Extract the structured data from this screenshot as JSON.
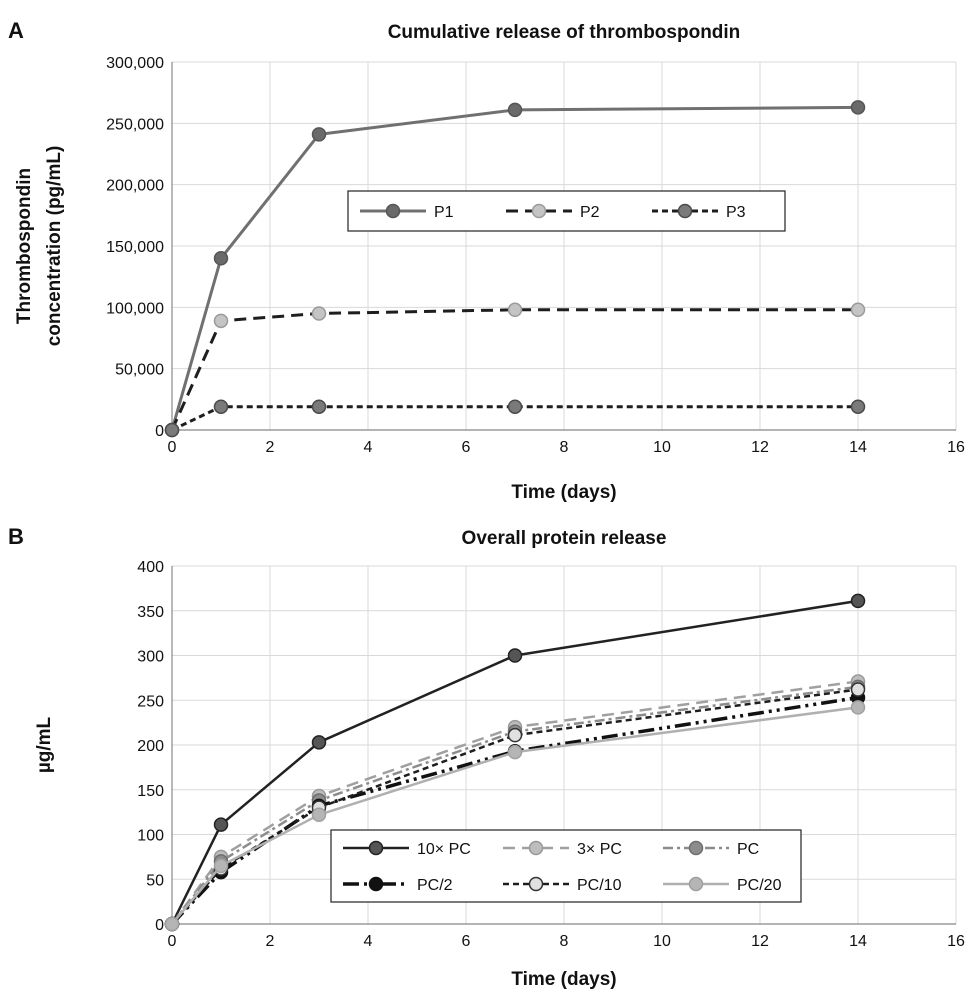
{
  "chart_data": [
    {
      "panel_label": "A",
      "type": "line",
      "title": "Cumulative release of thrombospondin",
      "xlabel": "Time (days)",
      "ylabel": "Thrombospondin concentration (pg/mL)",
      "ylabel_lines": [
        "Thrombospondin",
        "concentration (pg/mL)"
      ],
      "xlim": [
        0,
        16
      ],
      "ylim": [
        0,
        300000
      ],
      "x_ticks": [
        0,
        2,
        4,
        6,
        8,
        10,
        12,
        14,
        16
      ],
      "y_ticks": [
        0,
        50000,
        100000,
        150000,
        200000,
        250000,
        300000
      ],
      "y_tick_labels": [
        "0",
        "50,000",
        "100,000",
        "150,000",
        "200,000",
        "250,000",
        "300,000"
      ],
      "grid": true,
      "legend": "center",
      "x": [
        0,
        1,
        3,
        7,
        14
      ],
      "series": [
        {
          "name": "P1",
          "values": [
            0,
            140000,
            241000,
            261000,
            263000
          ],
          "color": "#707070",
          "dash": "",
          "marker_fill": "#6a6a6a",
          "marker_stroke": "#555555",
          "width": 3
        },
        {
          "name": "P2",
          "values": [
            0,
            89000,
            95000,
            98000,
            98000
          ],
          "color": "#1e1e1e",
          "dash": "12 7",
          "marker_fill": "#c4c4c4",
          "marker_stroke": "#9a9a9a",
          "width": 3
        },
        {
          "name": "P3",
          "values": [
            0,
            19000,
            19000,
            19000,
            19000
          ],
          "color": "#1e1e1e",
          "dash": "6 4",
          "marker_fill": "#7a7a7a",
          "marker_stroke": "#4a4a4a",
          "width": 3
        }
      ]
    },
    {
      "panel_label": "B",
      "type": "line",
      "title": "Overall protein release",
      "xlabel": "Time (days)",
      "ylabel": "µg/mL",
      "ylabel_lines": [
        "µg/mL"
      ],
      "xlim": [
        0,
        16
      ],
      "ylim": [
        0,
        400
      ],
      "x_ticks": [
        0,
        2,
        4,
        6,
        8,
        10,
        12,
        14,
        16
      ],
      "y_ticks": [
        0,
        50,
        100,
        150,
        200,
        250,
        300,
        350,
        400
      ],
      "y_tick_labels": [
        "0",
        "50",
        "100",
        "150",
        "200",
        "250",
        "300",
        "350",
        "400"
      ],
      "grid": true,
      "legend": "bottom-center",
      "x": [
        0,
        1,
        3,
        7,
        14
      ],
      "series": [
        {
          "name": "10× PC",
          "values": [
            0,
            111,
            203,
            300,
            361
          ],
          "color": "#222222",
          "dash": "",
          "marker_fill": "#555555",
          "marker_stroke": "#222222",
          "width": 2.5
        },
        {
          "name": "3× PC",
          "values": [
            0,
            75,
            143,
            220,
            271
          ],
          "color": "#a0a0a0",
          "dash": "12 7",
          "marker_fill": "#bdbdbd",
          "marker_stroke": "#999999",
          "width": 2.5
        },
        {
          "name": "PC",
          "values": [
            0,
            70,
            138,
            215,
            265
          ],
          "color": "#8c8c8c",
          "dash": "10 4 3 4",
          "marker_fill": "#8c8c8c",
          "marker_stroke": "#6e6e6e",
          "width": 2.5
        },
        {
          "name": "PC/2",
          "values": [
            0,
            58,
            132,
            193,
            253
          ],
          "color": "#111111",
          "dash": "16 5 3 5 3 5",
          "marker_fill": "#111111",
          "marker_stroke": "#111111",
          "width": 3.5
        },
        {
          "name": "PC/10",
          "values": [
            0,
            62,
            130,
            211,
            262
          ],
          "color": "#1e1e1e",
          "dash": "6 4",
          "marker_fill": "#e0e0e0",
          "marker_stroke": "#333333",
          "width": 2.5
        },
        {
          "name": "PC/20",
          "values": [
            0,
            65,
            122,
            192,
            242
          ],
          "color": "#b0b0b0",
          "dash": "",
          "marker_fill": "#b5b5b5",
          "marker_stroke": "#a0a0a0",
          "width": 2.5
        }
      ]
    }
  ]
}
